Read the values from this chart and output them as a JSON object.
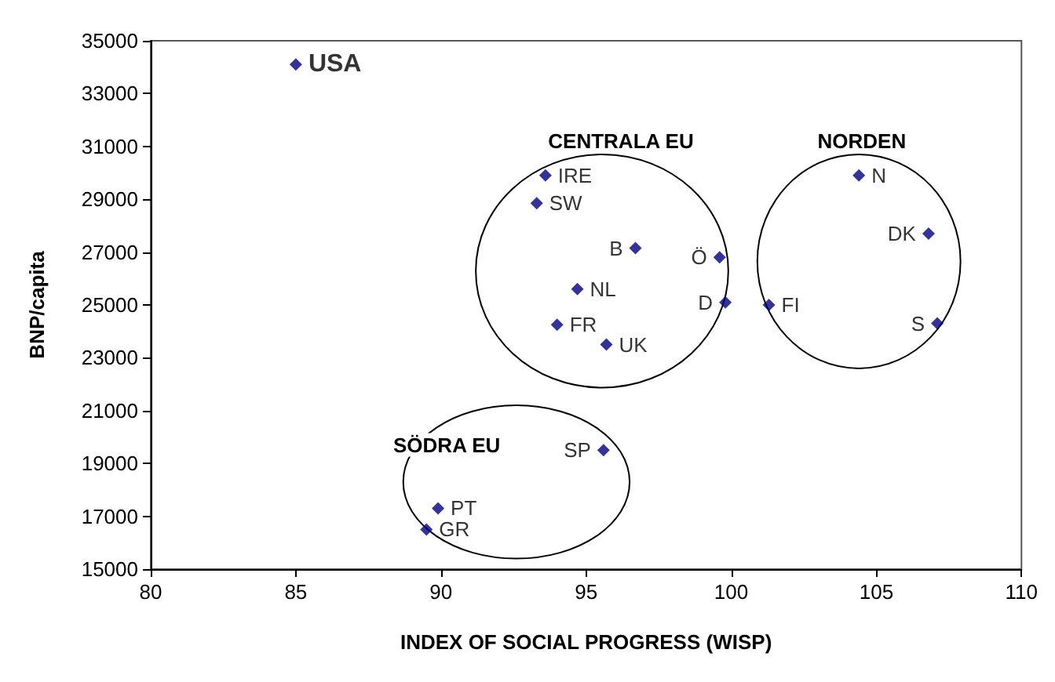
{
  "chart_data": {
    "type": "scatter",
    "xlabel": "INDEX OF SOCIAL PROGRESS (WISP)",
    "ylabel": "BNP/capita",
    "xlim": [
      80,
      110
    ],
    "xticks": [
      80,
      85,
      90,
      95,
      100,
      105,
      110
    ],
    "ylim": [
      15000,
      35000
    ],
    "yticks": [
      15000,
      17000,
      19000,
      21000,
      23000,
      25000,
      27000,
      29000,
      31000,
      33000,
      35000
    ],
    "grid": false,
    "legend": false,
    "marker": "diamond",
    "series": [
      {
        "name": "USA",
        "color": "#000080",
        "x": [
          85.0
        ],
        "values": [
          34100
        ]
      },
      {
        "name": "IRE",
        "color": "#000080",
        "x": [
          93.6
        ],
        "values": [
          29900
        ]
      },
      {
        "name": "SW",
        "color": "#000080",
        "x": [
          93.3
        ],
        "values": [
          28850
        ]
      },
      {
        "name": "B",
        "color": "#000080",
        "x": [
          96.7
        ],
        "values": [
          27150
        ]
      },
      {
        "name": "Ö",
        "color": "#000080",
        "x": [
          99.6
        ],
        "values": [
          26800
        ]
      },
      {
        "name": "NL",
        "color": "#000080",
        "x": [
          94.7
        ],
        "values": [
          25600
        ]
      },
      {
        "name": "D",
        "color": "#000080",
        "x": [
          99.8
        ],
        "values": [
          25100
        ]
      },
      {
        "name": "FR",
        "color": "#000080",
        "x": [
          94.0
        ],
        "values": [
          24250
        ]
      },
      {
        "name": "UK",
        "color": "#000080",
        "x": [
          95.7
        ],
        "values": [
          23500
        ]
      },
      {
        "name": "N",
        "color": "#000080",
        "x": [
          104.4
        ],
        "values": [
          29900
        ]
      },
      {
        "name": "DK",
        "color": "#000080",
        "x": [
          106.8
        ],
        "values": [
          27700
        ]
      },
      {
        "name": "FI",
        "color": "#000080",
        "x": [
          101.3
        ],
        "values": [
          25000
        ]
      },
      {
        "name": "S",
        "color": "#000080",
        "x": [
          107.1
        ],
        "values": [
          24300
        ]
      },
      {
        "name": "SP",
        "color": "#000080",
        "x": [
          95.6
        ],
        "values": [
          19500
        ]
      },
      {
        "name": "PT",
        "color": "#000080",
        "x": [
          89.9
        ],
        "values": [
          17300
        ]
      },
      {
        "name": "GR",
        "color": "#000080",
        "x": [
          89.5
        ],
        "values": [
          16500
        ]
      }
    ],
    "annotations": [
      "CENTRALA EU",
      "NORDEN",
      "SÖDRA EU"
    ]
  }
}
